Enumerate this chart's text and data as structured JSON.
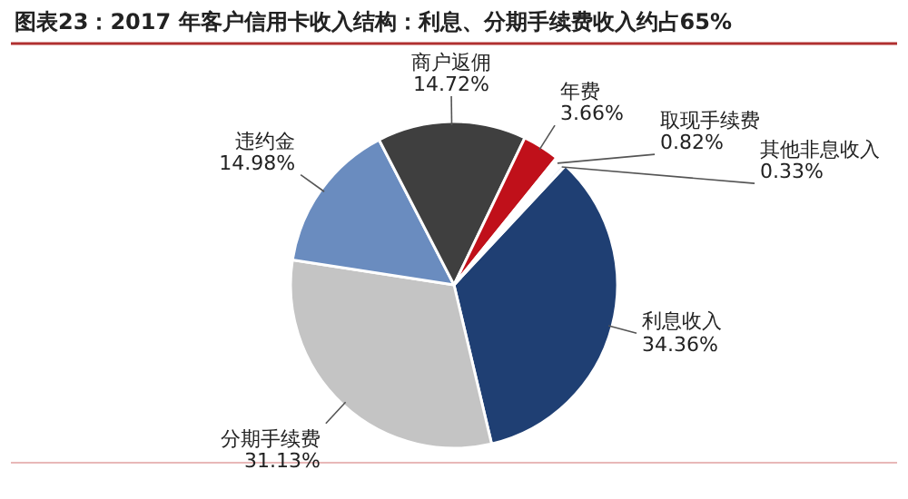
{
  "chart_data": {
    "type": "pie",
    "title": "图表23：2017 年客户信用卡收入结构：利息、分期手续费收入约占65%",
    "categories": [
      "利息收入",
      "分期手续费",
      "违约金",
      "商户返佣",
      "年费",
      "取现手续费",
      "其他非息收入"
    ],
    "values": [
      34.36,
      31.13,
      14.98,
      14.72,
      3.66,
      0.82,
      0.33
    ],
    "colors": [
      "#1f3f73",
      "#c4c4c4",
      "#6a8cbf",
      "#3f3f3f",
      "#c0101a",
      "#ffffff",
      "#dfe6f0"
    ],
    "value_labels": [
      "34.36%",
      "31.13%",
      "14.98%",
      "14.72%",
      "3.66%",
      "0.82%",
      "0.33%"
    ]
  }
}
